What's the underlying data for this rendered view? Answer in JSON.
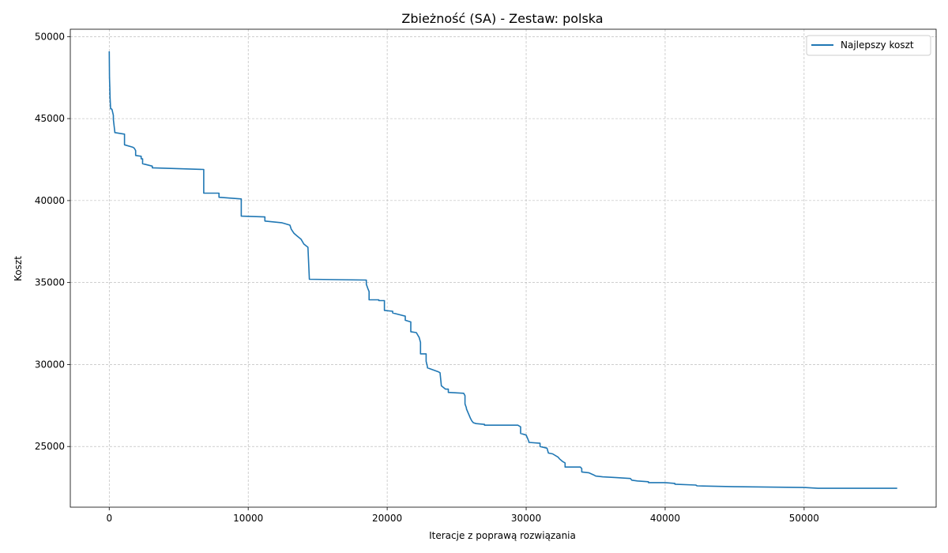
{
  "chart_data": {
    "type": "line",
    "title": "Zbieżność (SA) - Zestaw: polska",
    "xlabel": "Iteracje z poprawą rozwiązania",
    "ylabel": "Koszt",
    "xlim": [
      -2800,
      59500
    ],
    "ylim": [
      21300,
      50450
    ],
    "xticks": [
      0,
      10000,
      20000,
      30000,
      40000,
      50000
    ],
    "xtick_labels": [
      "0",
      "10000",
      "20000",
      "30000",
      "40000",
      "50000"
    ],
    "yticks": [
      25000,
      30000,
      35000,
      40000,
      45000,
      50000
    ],
    "ytick_labels": [
      "25000",
      "30000",
      "35000",
      "40000",
      "45000",
      "50000"
    ],
    "grid": true,
    "legend_position": "top-right",
    "colors": {
      "line": "#1f77b4",
      "grid": "#b0b0b0",
      "axes": "#000000"
    },
    "series": [
      {
        "name": "Najlepszy koszt",
        "x": [
          0,
          20,
          40,
          60,
          80,
          100,
          150,
          200,
          300,
          300,
          400,
          400,
          1100,
          1100,
          1700,
          1800,
          1900,
          1900,
          2300,
          2300,
          2400,
          2400,
          3100,
          3100,
          6800,
          6800,
          7900,
          7900,
          9500,
          9500,
          11200,
          11200,
          12400,
          12600,
          13000,
          13100,
          13300,
          13500,
          13800,
          14000,
          14300,
          14400,
          18500,
          18500,
          18600,
          18700,
          18700,
          19400,
          19400,
          19800,
          19800,
          20400,
          20400,
          21300,
          21300,
          21700,
          21700,
          22100,
          22200,
          22300,
          22400,
          22400,
          22800,
          22800,
          22900,
          22900,
          23700,
          23800,
          23900,
          24200,
          24400,
          24400,
          25500,
          25600,
          25600,
          25700,
          25700,
          26000,
          26100,
          26200,
          26400,
          27000,
          27000,
          29400,
          29600,
          29600,
          30000,
          30100,
          30200,
          30200,
          31000,
          31000,
          31500,
          31600,
          31900,
          32300,
          32400,
          32600,
          32800,
          32800,
          33900,
          34000,
          34000,
          34500,
          34900,
          35000,
          35500,
          36500,
          37500,
          37600,
          38000,
          38800,
          38800,
          40000,
          40700,
          40700,
          42200,
          42300,
          45000,
          45100,
          50000,
          51000,
          56700
        ],
        "y": [
          49100,
          47500,
          46900,
          46300,
          45900,
          45600,
          45600,
          45550,
          45200,
          44950,
          44200,
          44150,
          44050,
          43400,
          43250,
          43200,
          43050,
          42750,
          42700,
          42550,
          42550,
          42250,
          42100,
          42000,
          41900,
          40450,
          40450,
          40200,
          40100,
          39050,
          39000,
          38750,
          38650,
          38600,
          38500,
          38250,
          38000,
          37850,
          37650,
          37350,
          37150,
          35200,
          35150,
          34900,
          34650,
          34450,
          33950,
          33950,
          33900,
          33900,
          33300,
          33250,
          33150,
          32950,
          32700,
          32600,
          32000,
          31950,
          31800,
          31650,
          31350,
          30650,
          30650,
          30200,
          29850,
          29800,
          29550,
          29500,
          28700,
          28500,
          28500,
          28300,
          28250,
          28100,
          27600,
          27350,
          27300,
          26700,
          26550,
          26450,
          26400,
          26350,
          26300,
          26300,
          26200,
          25800,
          25700,
          25500,
          25300,
          25250,
          25200,
          25000,
          24900,
          24600,
          24550,
          24350,
          24250,
          24100,
          24000,
          23750,
          23750,
          23650,
          23450,
          23400,
          23250,
          23200,
          23150,
          23100,
          23050,
          22950,
          22900,
          22850,
          22800,
          22800,
          22750,
          22700,
          22650,
          22600,
          22550,
          22550,
          22500,
          22450,
          22450
        ]
      }
    ]
  }
}
